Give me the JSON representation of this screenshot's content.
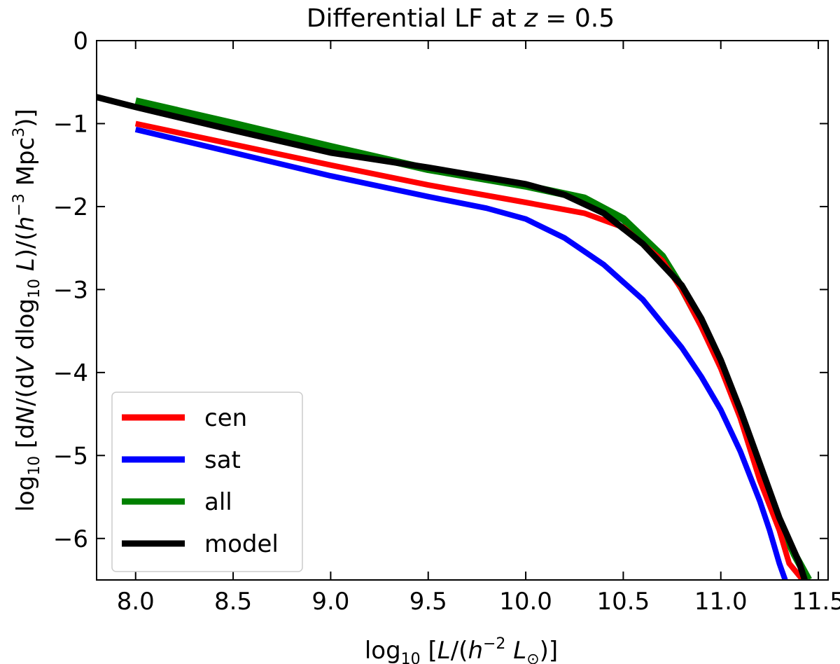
{
  "chart_data": {
    "type": "line",
    "title": "Differential LF at z = 0.5",
    "title_parts": {
      "prefix": "Differential LF at ",
      "var": "z",
      "suffix": " = 0.5"
    },
    "xlabel": "log10 [L/(h^-2 L_sun)]",
    "ylabel": "log10 [dN/(dV dlog10 L)/(h^-3 Mpc^3)]",
    "xlim": [
      7.8,
      11.55
    ],
    "ylim": [
      -6.5,
      0
    ],
    "xticks": [
      8.0,
      8.5,
      9.0,
      9.5,
      10.0,
      10.5,
      11.0,
      11.5
    ],
    "xtick_labels": [
      "8.0",
      "8.5",
      "9.0",
      "9.5",
      "10.0",
      "10.5",
      "11.0",
      "11.5"
    ],
    "yticks": [
      0,
      -1,
      -2,
      -3,
      -4,
      -5,
      -6
    ],
    "ytick_labels": [
      "0",
      "−1",
      "−2",
      "−3",
      "−4",
      "−5",
      "−6"
    ],
    "legend_position": "lower-left",
    "series": [
      {
        "name": "cen",
        "color": "#ff0000",
        "x": [
          8.0,
          8.5,
          9.0,
          9.5,
          10.0,
          10.3,
          10.5,
          10.7,
          10.8,
          10.9,
          11.0,
          11.1,
          11.2,
          11.3,
          11.35,
          11.42
        ],
        "y": [
          -1.0,
          -1.25,
          -1.5,
          -1.74,
          -1.95,
          -2.08,
          -2.25,
          -2.65,
          -3.0,
          -3.45,
          -3.95,
          -4.55,
          -5.3,
          -5.9,
          -6.3,
          -6.5
        ]
      },
      {
        "name": "sat",
        "color": "#0000ff",
        "x": [
          8.0,
          8.5,
          9.0,
          9.5,
          9.8,
          10.0,
          10.2,
          10.4,
          10.6,
          10.8,
          10.9,
          11.0,
          11.1,
          11.2,
          11.25,
          11.3,
          11.33
        ],
        "y": [
          -1.07,
          -1.35,
          -1.63,
          -1.88,
          -2.02,
          -2.15,
          -2.38,
          -2.7,
          -3.12,
          -3.7,
          -4.05,
          -4.45,
          -4.95,
          -5.55,
          -5.9,
          -6.3,
          -6.5
        ]
      },
      {
        "name": "all",
        "color": "#008000",
        "x": [
          8.0,
          8.5,
          9.0,
          9.5,
          10.0,
          10.3,
          10.5,
          10.7,
          10.8,
          10.9,
          11.0,
          11.1,
          11.2,
          11.3,
          11.38,
          11.45
        ],
        "y": [
          -0.73,
          -1.0,
          -1.28,
          -1.55,
          -1.75,
          -1.9,
          -2.15,
          -2.6,
          -2.98,
          -3.42,
          -3.9,
          -4.5,
          -5.2,
          -5.8,
          -6.2,
          -6.5
        ]
      },
      {
        "name": "model",
        "color": "#000000",
        "x": [
          7.8,
          8.0,
          8.5,
          9.0,
          9.5,
          10.0,
          10.2,
          10.4,
          10.6,
          10.8,
          10.9,
          11.0,
          11.1,
          11.2,
          11.3,
          11.4,
          11.43
        ],
        "y": [
          -0.68,
          -0.8,
          -1.08,
          -1.35,
          -1.53,
          -1.73,
          -1.86,
          -2.08,
          -2.45,
          -2.95,
          -3.35,
          -3.85,
          -4.45,
          -5.1,
          -5.75,
          -6.28,
          -6.5
        ]
      }
    ]
  }
}
